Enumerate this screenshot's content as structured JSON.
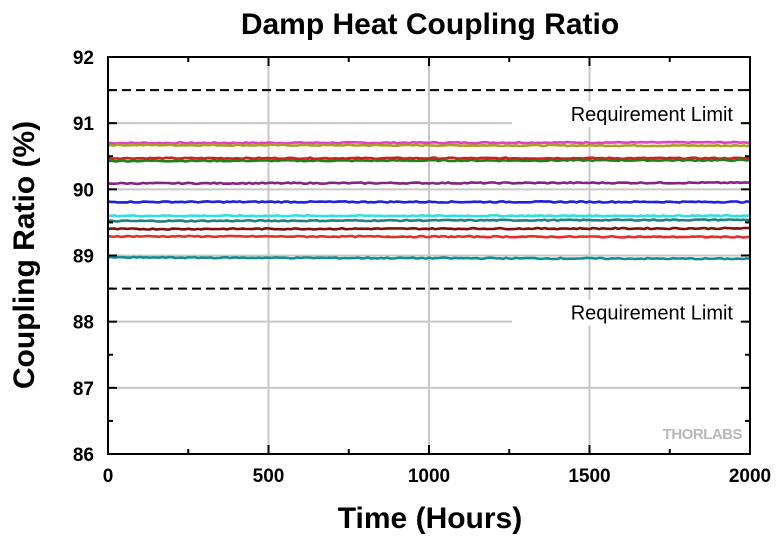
{
  "chart_data": {
    "type": "line",
    "title": "Damp Heat Coupling Ratio",
    "xlabel": "Time (Hours)",
    "ylabel": "Coupling Ratio (%)",
    "xlim": [
      0,
      2000
    ],
    "ylim": [
      86,
      92
    ],
    "xticks": [
      0,
      500,
      1000,
      1500,
      2000
    ],
    "yticks": [
      86,
      87,
      88,
      89,
      90,
      91,
      92
    ],
    "grid": true,
    "limits": [
      {
        "value": 91.5,
        "label": "Requirement Limit",
        "style": "dashed",
        "color": "#000000"
      },
      {
        "value": 88.5,
        "label": "Requirement Limit",
        "style": "dashed",
        "color": "#000000"
      }
    ],
    "series": [
      {
        "color": "#e040c8",
        "x": [
          0,
          2000
        ],
        "values": [
          90.7,
          90.71
        ]
      },
      {
        "color": "#a8a020",
        "x": [
          0,
          2000
        ],
        "values": [
          90.67,
          90.66
        ]
      },
      {
        "color": "#d02020",
        "x": [
          0,
          2000
        ],
        "values": [
          90.47,
          90.47
        ]
      },
      {
        "color": "#208020",
        "x": [
          0,
          2000
        ],
        "values": [
          90.43,
          90.44
        ]
      },
      {
        "color": "#8a208a",
        "x": [
          0,
          2000
        ],
        "values": [
          90.09,
          90.1
        ]
      },
      {
        "color": "#2020e0",
        "x": [
          0,
          2000
        ],
        "values": [
          89.81,
          89.81
        ]
      },
      {
        "color": "#30e0e0",
        "x": [
          0,
          2000
        ],
        "values": [
          89.6,
          89.6
        ]
      },
      {
        "color": "#208080",
        "x": [
          0,
          2000
        ],
        "values": [
          89.52,
          89.54
        ]
      },
      {
        "color": "#801010",
        "x": [
          0,
          2000
        ],
        "values": [
          89.4,
          89.41
        ]
      },
      {
        "color": "#e03030",
        "x": [
          0,
          2000
        ],
        "values": [
          89.29,
          89.28
        ]
      },
      {
        "color": "#109090",
        "x": [
          0,
          2000
        ],
        "values": [
          88.97,
          88.95
        ]
      }
    ]
  },
  "watermark": "THORLABS"
}
